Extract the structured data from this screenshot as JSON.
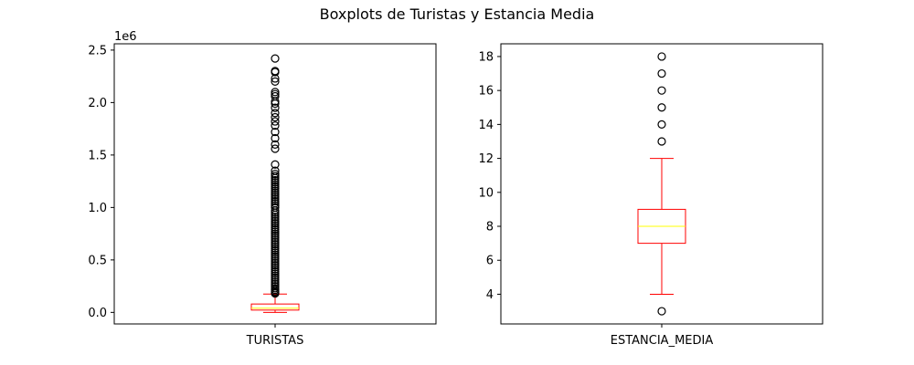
{
  "title": "Boxplots de Turistas y Estancia Media",
  "colors": {
    "box": "#ff0000",
    "whisker": "#ff0000",
    "cap": "#ff0000",
    "median": "#ffff00",
    "flier": "#000000",
    "axes": "#000000"
  },
  "chart_data": [
    {
      "type": "boxplot",
      "category": "TURISTAS",
      "ylim": [
        -110000,
        2560000
      ],
      "yticks": [
        0.0,
        0.5,
        1.0,
        1.5,
        2.0,
        2.5
      ],
      "y_offset_label": "1e6",
      "y_scale_factor": 1000000,
      "stats": {
        "whisker_low": 0,
        "q1": 22000,
        "median": 40000,
        "q3": 80000,
        "whisker_high": 175000
      },
      "outliers": [
        2420000,
        2300000,
        2290000,
        2230000,
        2200000,
        2100000,
        2080000,
        2060000,
        2010000,
        1990000,
        1950000,
        1900000,
        1860000,
        1820000,
        1780000,
        1720000,
        1660000,
        1600000,
        1560000,
        1410000,
        1350000,
        1320000,
        1300000,
        1280000,
        1260000,
        1240000,
        1220000,
        1200000,
        1180000,
        1160000,
        1140000,
        1120000,
        1100000,
        1080000,
        1060000,
        1040000,
        1020000,
        1000000,
        970000,
        950000,
        930000,
        910000,
        890000,
        870000,
        850000,
        830000,
        810000,
        790000,
        770000,
        750000,
        730000,
        710000,
        690000,
        670000,
        650000,
        630000,
        610000,
        590000,
        570000,
        550000,
        530000,
        510000,
        490000,
        470000,
        450000,
        430000,
        410000,
        390000,
        370000,
        350000,
        330000,
        310000,
        290000,
        270000,
        250000,
        230000,
        215000,
        200000,
        190000,
        180000
      ]
    },
    {
      "type": "boxplot",
      "category": "ESTANCIA_MEDIA",
      "ylim": [
        2.25,
        18.75
      ],
      "yticks": [
        4,
        6,
        8,
        10,
        12,
        14,
        16,
        18
      ],
      "y_offset_label": "",
      "y_scale_factor": 1,
      "stats": {
        "whisker_low": 4,
        "q1": 7,
        "median": 8,
        "q3": 9,
        "whisker_high": 12
      },
      "outliers": [
        3,
        13,
        14,
        15,
        16,
        17,
        18
      ]
    }
  ]
}
